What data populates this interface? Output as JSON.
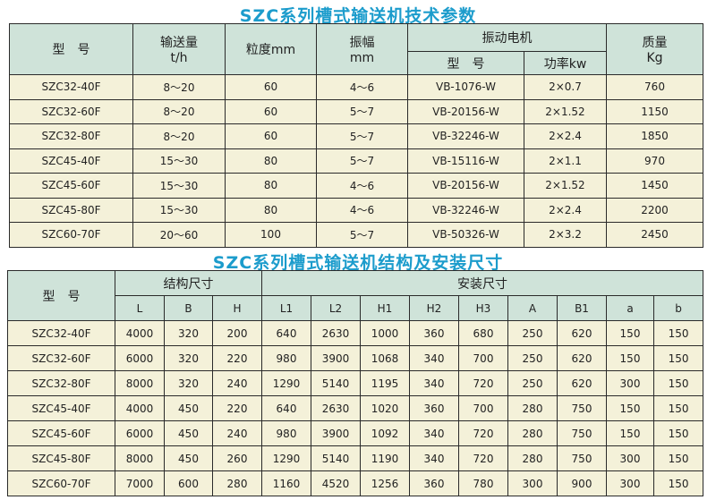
{
  "table1": {
    "title": "SZC系列槽式输送机技术参数",
    "headers": {
      "model": "型　号",
      "capacity": "输送量",
      "capacity_unit": "t/h",
      "particle": "粒度mm",
      "amplitude": "振幅",
      "amplitude_unit": "mm",
      "motor": "振动电机",
      "motor_model": "型　号",
      "motor_power": "功率kw",
      "mass": "质量",
      "mass_unit": "Kg"
    },
    "rows": [
      [
        "SZC32-40F",
        "8～20",
        "60",
        "4～6",
        "VB-1076-W",
        "2×0.7",
        "760"
      ],
      [
        "SZC32-60F",
        "8～20",
        "60",
        "5～7",
        "VB-20156-W",
        "2×1.52",
        "1150"
      ],
      [
        "SZC32-80F",
        "8～20",
        "60",
        "5～7",
        "VB-32246-W",
        "2×2.4",
        "1850"
      ],
      [
        "SZC45-40F",
        "15～30",
        "80",
        "5～7",
        "VB-15116-W",
        "2×1.1",
        "970"
      ],
      [
        "SZC45-60F",
        "15～30",
        "80",
        "4～6",
        "VB-20156-W",
        "2×1.52",
        "1450"
      ],
      [
        "SZC45-80F",
        "15～30",
        "80",
        "4～6",
        "VB-32246-W",
        "2×2.4",
        "2200"
      ],
      [
        "SZC60-70F",
        "20～60",
        "100",
        "5～7",
        "VB-50326-W",
        "2×3.2",
        "2450"
      ]
    ]
  },
  "table2": {
    "title": "SZC系列槽式输送机结构及安装尺寸",
    "headers": {
      "model": "型　号",
      "structure": "结构尺寸",
      "install": "安装尺寸",
      "columns": [
        "L",
        "B",
        "H",
        "L1",
        "L2",
        "H1",
        "H2",
        "H3",
        "A",
        "B1",
        "a",
        "b"
      ]
    },
    "rows": [
      [
        "SZC32-40F",
        "4000",
        "320",
        "200",
        "640",
        "2630",
        "1000",
        "360",
        "680",
        "250",
        "620",
        "150",
        "150"
      ],
      [
        "SZC32-60F",
        "6000",
        "320",
        "220",
        "980",
        "3900",
        "1068",
        "340",
        "700",
        "250",
        "620",
        "150",
        "150"
      ],
      [
        "SZC32-80F",
        "8000",
        "320",
        "240",
        "1290",
        "5140",
        "1195",
        "340",
        "720",
        "250",
        "620",
        "300",
        "150"
      ],
      [
        "SZC45-40F",
        "4000",
        "450",
        "220",
        "640",
        "2630",
        "1020",
        "360",
        "700",
        "280",
        "750",
        "150",
        "150"
      ],
      [
        "SZC45-60F",
        "6000",
        "450",
        "240",
        "980",
        "3900",
        "1092",
        "340",
        "720",
        "280",
        "750",
        "150",
        "150"
      ],
      [
        "SZC45-80F",
        "8000",
        "450",
        "260",
        "1290",
        "5140",
        "1190",
        "340",
        "720",
        "280",
        "750",
        "300",
        "150"
      ],
      [
        "SZC60-70F",
        "7000",
        "600",
        "280",
        "1160",
        "4520",
        "1256",
        "360",
        "780",
        "300",
        "900",
        "300",
        "150"
      ]
    ]
  },
  "colors": {
    "title": "#1c9ccc",
    "header_bg": "#cfe3d9",
    "cell_bg": "#f4f1d9",
    "border": "#2a2a2a"
  }
}
